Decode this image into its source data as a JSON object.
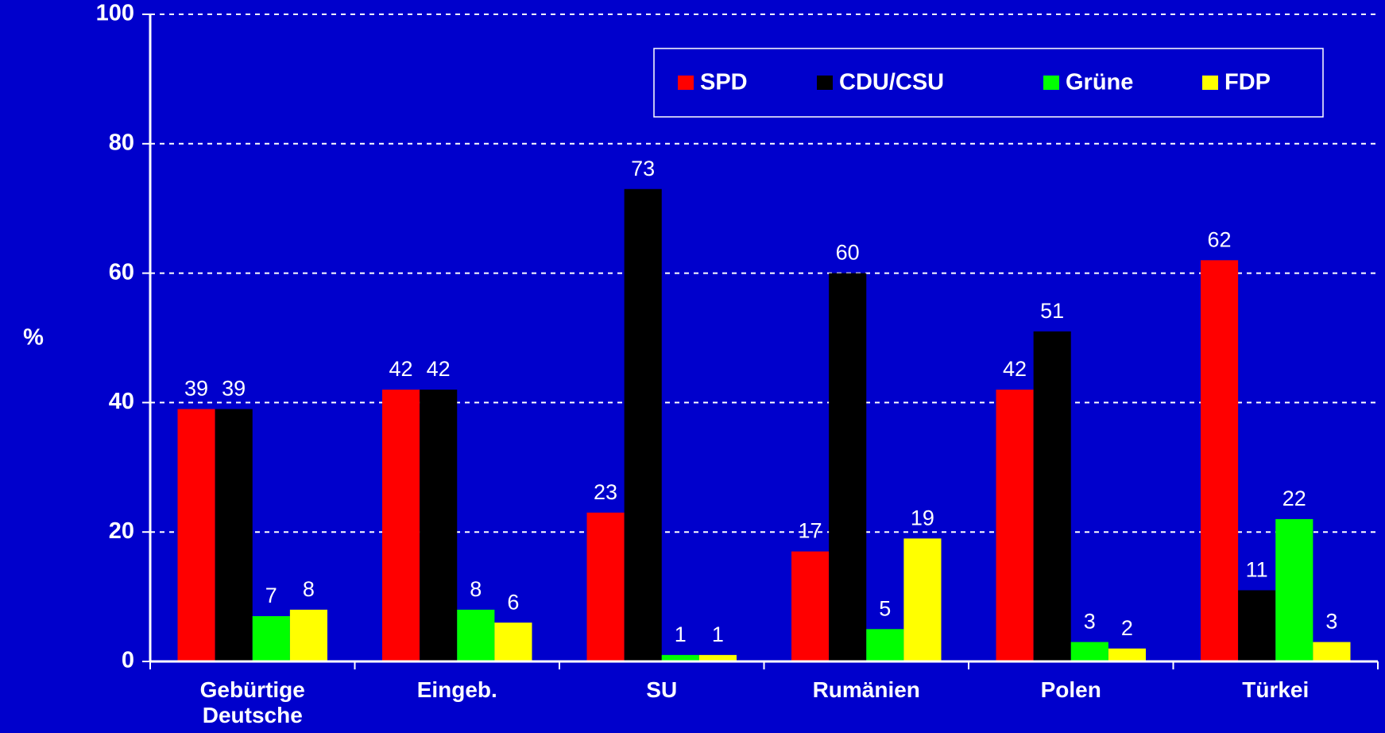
{
  "chart_data": {
    "type": "bar",
    "y_label": "%",
    "categories": [
      "Gebürtige Deutsche",
      "Eingeb.",
      "SU",
      "Rumänien",
      "Polen",
      "Türkei"
    ],
    "series": [
      {
        "name": "SPD",
        "color": "#ff0000",
        "values": [
          39,
          42,
          23,
          17,
          42,
          62
        ]
      },
      {
        "name": "CDU/CSU",
        "color": "#000000",
        "values": [
          39,
          42,
          73,
          60,
          51,
          11
        ]
      },
      {
        "name": "Grüne",
        "color": "#00ff00",
        "values": [
          7,
          8,
          1,
          5,
          3,
          22
        ]
      },
      {
        "name": "FDP",
        "color": "#ffff00",
        "values": [
          8,
          6,
          1,
          19,
          2,
          3
        ]
      }
    ],
    "ylim": [
      0,
      100
    ],
    "yticks": [
      0,
      20,
      40,
      60,
      80,
      100
    ],
    "grid": true,
    "legend": "top-right"
  }
}
